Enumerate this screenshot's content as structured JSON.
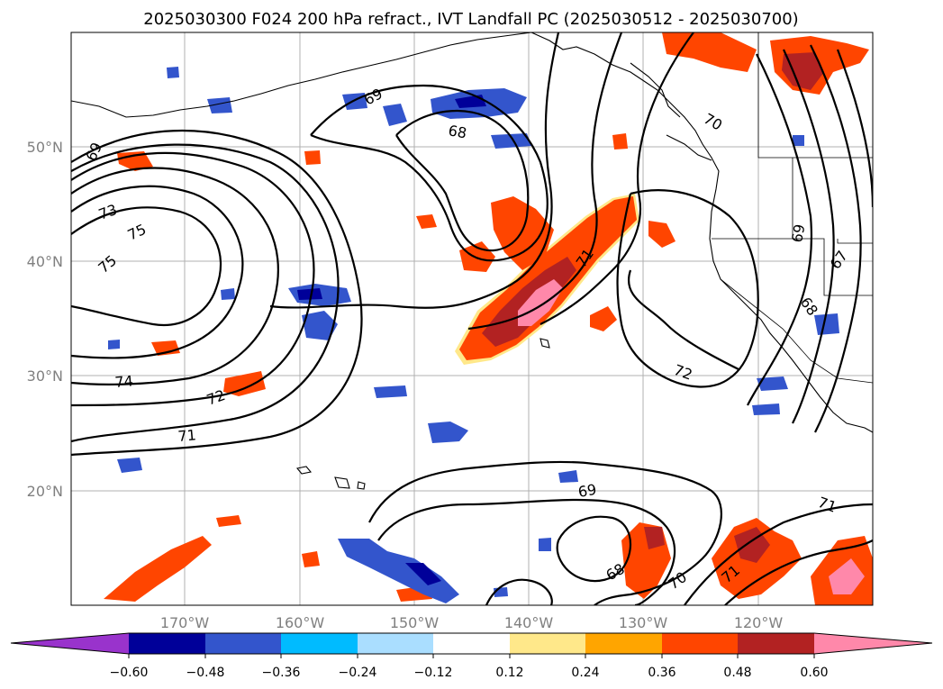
{
  "title": "2025030300 F024 200 hPa refract., IVT Landfall PC (2025030512 - 2025030700)",
  "map": {
    "lat_labels": [
      "50°N",
      "40°N",
      "30°N",
      "20°N"
    ],
    "lon_labels": [
      "170°W",
      "160°W",
      "150°W",
      "140°W",
      "130°W",
      "120°W"
    ],
    "contour_labels": [
      "69",
      "68",
      "70",
      "69",
      "67",
      "68",
      "73",
      "75",
      "75",
      "71",
      "72",
      "74",
      "72",
      "71",
      "69",
      "68",
      "70",
      "71",
      "71",
      "69"
    ]
  },
  "colorbar": {
    "colors": [
      "#9933cc",
      "#000099",
      "#3355cc",
      "#00bbff",
      "#aadeff",
      "#ffffff",
      "#ffe88a",
      "#ffa500",
      "#ff4500",
      "#b22222",
      "#ff88aa"
    ],
    "tick_labels": [
      "−0.60",
      "−0.48",
      "−0.36",
      "−0.24",
      "−0.12",
      "0.12",
      "0.24",
      "0.36",
      "0.48",
      "0.60"
    ]
  }
}
